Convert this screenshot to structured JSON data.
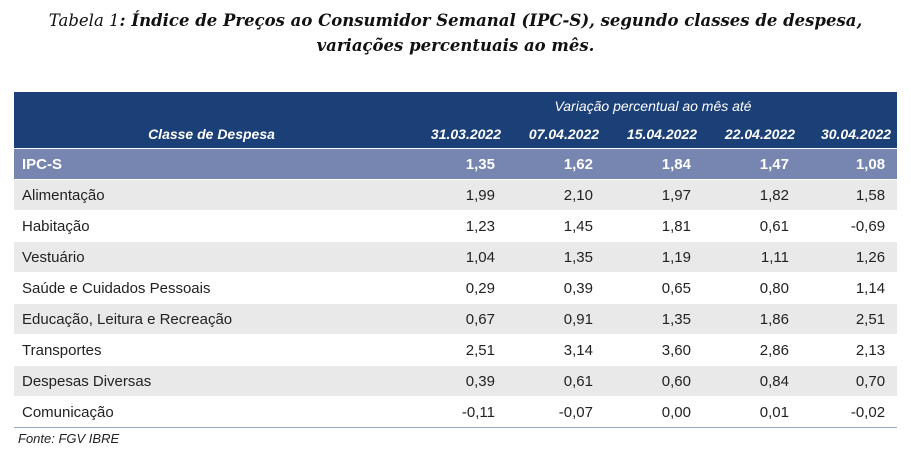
{
  "title": {
    "label": "Tabela 1",
    "line1": ": Índice de Preços ao Consumidor Semanal (IPC-S), segundo classes de despesa,",
    "line2": "variações percentuais ao mês."
  },
  "table": {
    "group_header": "Variação percentual ao mês até",
    "category_header": "Classe de Despesa",
    "dates": [
      "31.03.2022",
      "07.04.2022",
      "15.04.2022",
      "22.04.2022",
      "30.04.2022"
    ],
    "highlight_row": {
      "name": "IPC-S",
      "values": [
        "1,35",
        "1,62",
        "1,84",
        "1,47",
        "1,08"
      ]
    },
    "rows": [
      {
        "name": "Alimentação",
        "values": [
          "1,99",
          "2,10",
          "1,97",
          "1,82",
          "1,58"
        ]
      },
      {
        "name": "Habitação",
        "values": [
          "1,23",
          "1,45",
          "1,81",
          "0,61",
          "-0,69"
        ]
      },
      {
        "name": "Vestuário",
        "values": [
          "1,04",
          "1,35",
          "1,19",
          "1,11",
          "1,26"
        ]
      },
      {
        "name": "Saúde e Cuidados Pessoais",
        "values": [
          "0,29",
          "0,39",
          "0,65",
          "0,80",
          "1,14"
        ]
      },
      {
        "name": "Educação, Leitura e Recreação",
        "values": [
          "0,67",
          "0,91",
          "1,35",
          "1,86",
          "2,51"
        ]
      },
      {
        "name": "Transportes",
        "values": [
          "2,51",
          "3,14",
          "3,60",
          "2,86",
          "2,13"
        ]
      },
      {
        "name": "Despesas Diversas",
        "values": [
          "0,39",
          "0,61",
          "0,60",
          "0,84",
          "0,70"
        ]
      },
      {
        "name": "Comunicação",
        "values": [
          "-0,11",
          "-0,07",
          "0,00",
          "0,01",
          "-0,02"
        ]
      }
    ]
  },
  "source": "Fonte: FGV IBRE",
  "colors": {
    "header_bg": "#1b3f77",
    "highlight_bg": "#7786b0",
    "stripe_bg": "#e9e9e9"
  }
}
